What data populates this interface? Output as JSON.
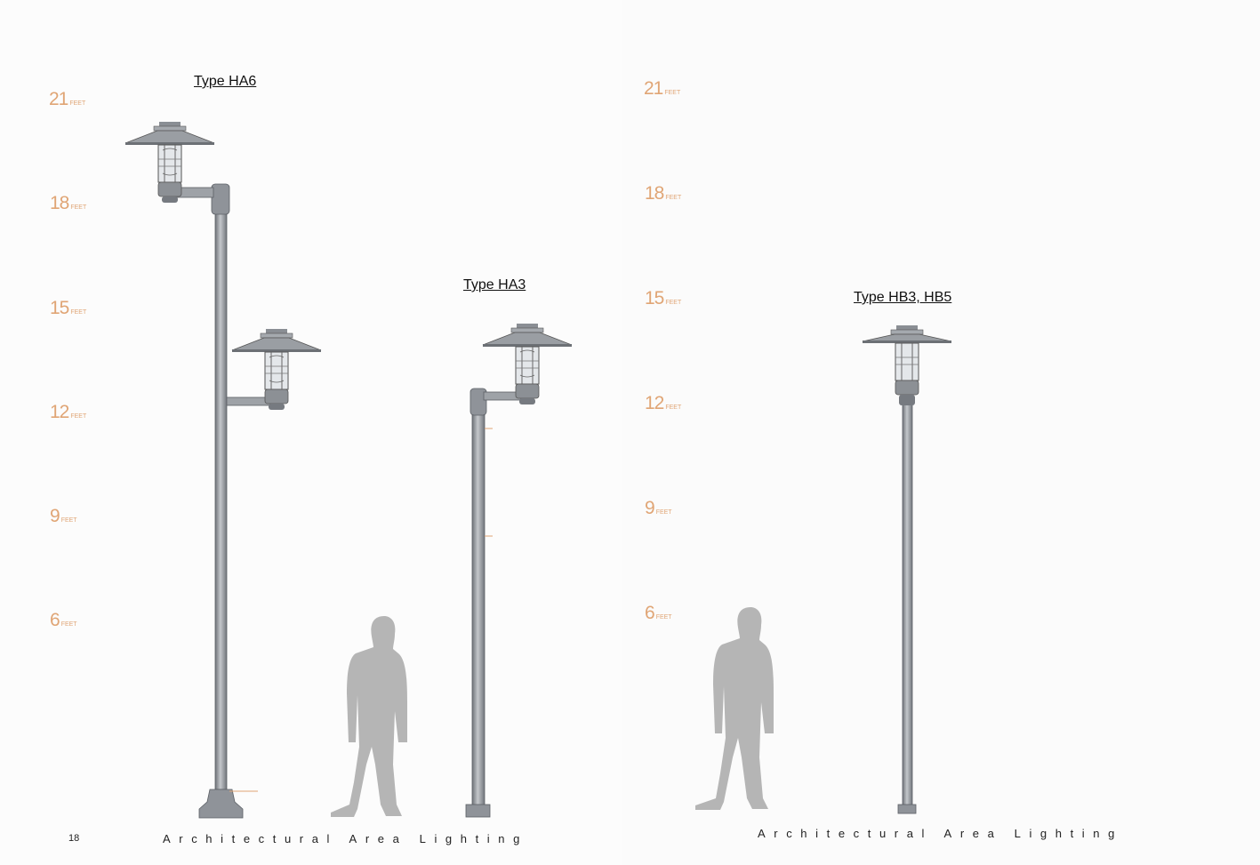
{
  "left_page": {
    "scale_labels": [
      {
        "value": "21",
        "unit": "FEET"
      },
      {
        "value": "18",
        "unit": "FEET"
      },
      {
        "value": "15",
        "unit": "FEET"
      },
      {
        "value": "12",
        "unit": "FEET"
      },
      {
        "value": "9",
        "unit": "FEET"
      },
      {
        "value": "6",
        "unit": "FEET"
      }
    ],
    "fixture_types": [
      "Type HA6",
      "Type HA3"
    ],
    "page_number": "18",
    "footer": "Architectural Area Lighting"
  },
  "right_page": {
    "scale_labels": [
      {
        "value": "21",
        "unit": "FEET"
      },
      {
        "value": "18",
        "unit": "FEET"
      },
      {
        "value": "15",
        "unit": "FEET"
      },
      {
        "value": "12",
        "unit": "FEET"
      },
      {
        "value": "9",
        "unit": "FEET"
      },
      {
        "value": "6",
        "unit": "FEET"
      }
    ],
    "fixture_types": [
      "Type HB3, HB5"
    ],
    "footer": "Architectural Area Lighting"
  },
  "colors": {
    "scale_accent": "#e0a575",
    "pole": "#8e9298",
    "silhouette": "#b5b5b5"
  }
}
